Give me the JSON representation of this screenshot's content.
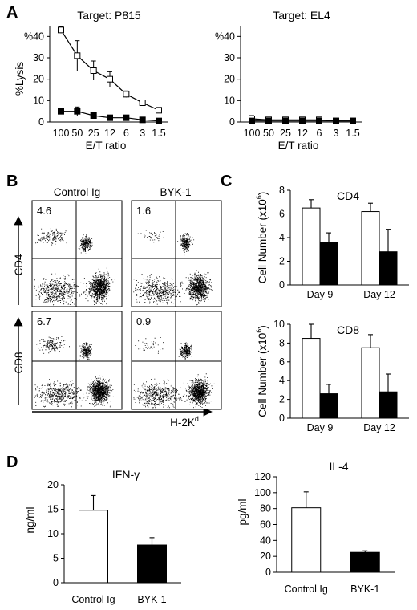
{
  "panels": {
    "A": {
      "letter": "A",
      "charts": [
        {
          "id": "p815",
          "type": "line",
          "title": "Target: P815",
          "xlabel": "E/T ratio",
          "ylabel": "%Lysis",
          "ylim": [
            0,
            45
          ],
          "yticks": [
            "0",
            "10",
            "20",
            "30",
            "40"
          ],
          "yticks_suffix_top": "%",
          "categories": [
            "100",
            "50",
            "25",
            "12",
            "6",
            "3",
            "1.5"
          ],
          "series": [
            {
              "marker": "open-square",
              "values": [
                43,
                31,
                24,
                20,
                13,
                9,
                5.5
              ],
              "errors": [
                1.5,
                7,
                4.5,
                3.5,
                1.5,
                1,
                1
              ]
            },
            {
              "marker": "filled-square",
              "values": [
                5,
                5,
                3,
                2,
                2,
                1,
                0.5
              ],
              "errors": [
                1,
                2,
                0.5,
                0.5,
                0.5,
                0.5,
                0.5
              ]
            }
          ]
        },
        {
          "id": "el4",
          "type": "line",
          "title": "Target: EL4",
          "xlabel": "E/T ratio",
          "ylabel": "",
          "ylim": [
            0,
            45
          ],
          "yticks": [
            "0",
            "10",
            "20",
            "30",
            "40"
          ],
          "yticks_suffix_top": "%",
          "categories": [
            "100",
            "50",
            "25",
            "12",
            "6",
            "3",
            "1.5"
          ],
          "series": [
            {
              "marker": "open-square",
              "values": [
                1.5,
                1,
                1,
                1,
                1,
                0.5,
                0.5
              ],
              "errors": [
                1.5,
                1,
                1,
                1,
                1,
                1,
                0.5
              ]
            },
            {
              "marker": "filled-square",
              "values": [
                0.5,
                0.5,
                0.5,
                0.5,
                0.5,
                0.5,
                0.5
              ],
              "errors": [
                0.5,
                0.5,
                0.5,
                0.5,
                0.5,
                0.5,
                0.5
              ]
            }
          ]
        }
      ]
    },
    "B": {
      "letter": "B",
      "col_labels": [
        "Control Ig",
        "BYK-1"
      ],
      "row_labels": [
        "CD4",
        "CD8"
      ],
      "percentages": [
        [
          "4.6",
          "1.6"
        ],
        [
          "6.7",
          "0.9"
        ]
      ],
      "xaxis_label": "H-2K",
      "xaxis_sup": "d"
    },
    "C": {
      "letter": "C",
      "charts": [
        {
          "id": "cd4",
          "type": "bar",
          "title": "CD4",
          "ylabel": "Cell Number (x10",
          "ylabel_sup": "6",
          "ylabel_end": ")",
          "ylim": [
            0,
            8
          ],
          "yticks": [
            "0",
            "2",
            "4",
            "6",
            "8"
          ],
          "categories": [
            "Day 9",
            "Day 12"
          ],
          "series": [
            {
              "fill": "#ffffff",
              "values": [
                6.5,
                6.2
              ],
              "errors": [
                0.7,
                0.7
              ]
            },
            {
              "fill": "#000000",
              "values": [
                3.6,
                2.8
              ],
              "errors": [
                0.8,
                1.9
              ]
            }
          ]
        },
        {
          "id": "cd8",
          "type": "bar",
          "title": "CD8",
          "ylabel": "Cell Number (x10",
          "ylabel_sup": "6",
          "ylabel_end": ")",
          "ylim": [
            0,
            10
          ],
          "yticks": [
            "0",
            "2",
            "4",
            "6",
            "8",
            "10"
          ],
          "categories": [
            "Day 9",
            "Day 12"
          ],
          "series": [
            {
              "fill": "#ffffff",
              "values": [
                8.5,
                7.5
              ],
              "errors": [
                1.5,
                1.4
              ]
            },
            {
              "fill": "#000000",
              "values": [
                2.6,
                2.8
              ],
              "errors": [
                1.0,
                1.9
              ]
            }
          ]
        }
      ]
    },
    "D": {
      "letter": "D",
      "charts": [
        {
          "id": "ifng",
          "type": "bar",
          "title": "IFN-γ",
          "ylabel": "ng/ml",
          "ylim": [
            0,
            20
          ],
          "yticks": [
            "0",
            "5",
            "10",
            "15",
            "20"
          ],
          "categories": [
            "Control Ig",
            "BYK-1"
          ],
          "fills": [
            "#ffffff",
            "#000000"
          ],
          "values": [
            14.8,
            7.7
          ],
          "errors": [
            3.0,
            1.5
          ]
        },
        {
          "id": "il4",
          "type": "bar",
          "title": "IL-4",
          "ylabel": "pg/ml",
          "ylim": [
            0,
            120
          ],
          "yticks": [
            "0",
            "20",
            "40",
            "60",
            "80",
            "100",
            "120"
          ],
          "categories": [
            "Control Ig",
            "BYK-1"
          ],
          "fills": [
            "#ffffff",
            "#000000"
          ],
          "values": [
            81,
            25
          ],
          "errors": [
            20,
            2
          ]
        }
      ]
    }
  }
}
